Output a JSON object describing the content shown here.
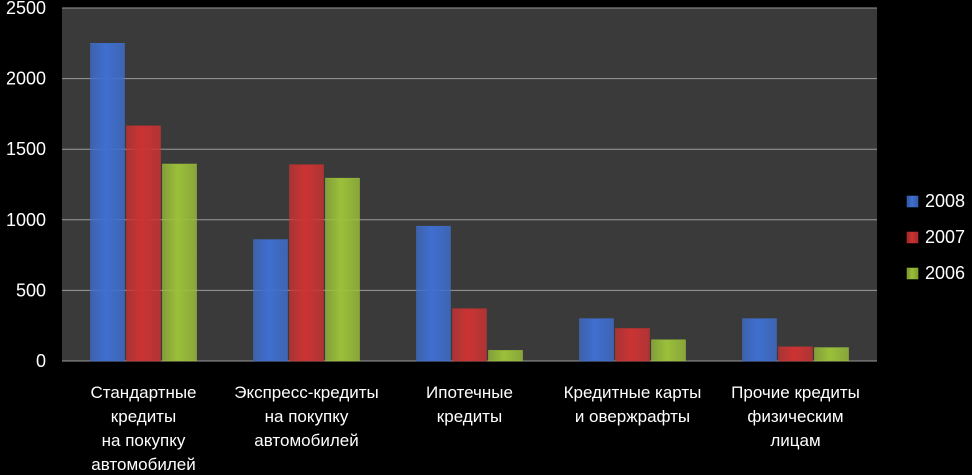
{
  "chart_data": {
    "type": "bar",
    "categories": [
      [
        "Стандартные",
        "кредиты",
        "на покупку",
        "автомобилей"
      ],
      [
        "Экспресс-кредиты",
        "на покупку",
        "автомобилей"
      ],
      [
        "Ипотечные",
        "кредиты"
      ],
      [
        "Кредитные карты",
        "и овержрафты"
      ],
      [
        "Прочие кредиты",
        "физическим",
        "лицам"
      ]
    ],
    "series": [
      {
        "name": "2008",
        "color": "#3f6fd0",
        "values": [
          2250,
          860,
          955,
          300,
          300
        ]
      },
      {
        "name": "2007",
        "color": "#cc3333",
        "values": [
          1665,
          1390,
          370,
          230,
          100
        ]
      },
      {
        "name": "2006",
        "color": "#9bc03a",
        "values": [
          1395,
          1295,
          75,
          150,
          95
        ]
      }
    ],
    "yticks": [
      "0",
      "500",
      "1000",
      "1500",
      "2000",
      "2500"
    ],
    "ylim": [
      0,
      2500
    ],
    "grid": true,
    "legend": "right",
    "colors": {
      "background": "#000000",
      "plot_area": "#3a3a3a",
      "grid": "#9a9a9a",
      "text": "#ffffff"
    }
  }
}
